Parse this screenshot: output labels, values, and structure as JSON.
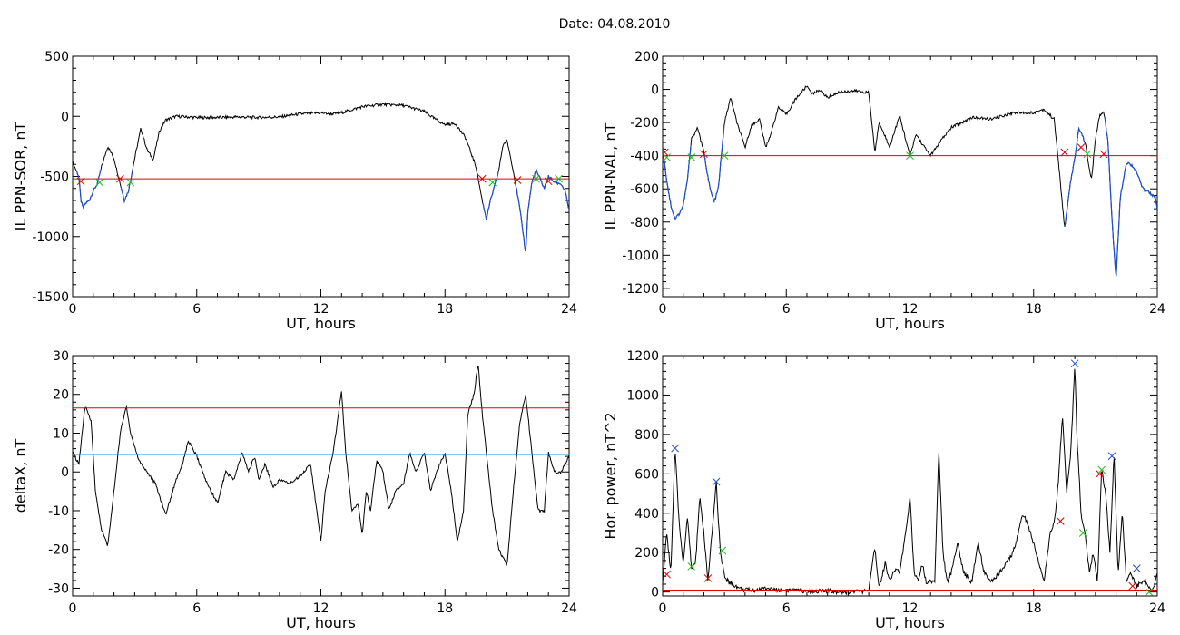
{
  "page_title": "Date:  04.08.2010",
  "colors": {
    "threshold": "#e00000",
    "blue": "#1f4fd0",
    "blueline": "#2a8fd0",
    "green": "#22bb22",
    "trace": "#000000"
  },
  "chart_data": [
    {
      "id": "sor",
      "type": "line",
      "title": "",
      "xlabel": "UT, hours",
      "ylabel": "IL PPN-SOR, nT",
      "xlim": [
        0,
        24
      ],
      "ylim": [
        -1500,
        500
      ],
      "xticks": [
        0,
        6,
        12,
        18,
        24
      ],
      "yticks": [
        500,
        0,
        -500,
        -1000,
        -1500
      ],
      "grid": false,
      "series": [
        {
          "color": "#000000",
          "x": [
            0,
            0.3,
            0.4,
            0.5,
            0.6,
            0.8,
            1.0,
            1.2,
            1.4,
            1.7,
            2.0,
            2.3,
            2.5,
            2.7,
            3.0,
            3.3,
            3.6,
            3.9,
            4.2,
            4.5,
            5.0,
            6.0,
            7.0,
            8.0,
            9.0,
            10.0,
            11.0,
            12.0,
            12.5,
            13.0,
            14.0,
            15.0,
            16.0,
            17.0,
            17.5,
            18.0,
            18.5,
            19.0,
            19.5,
            19.8,
            20.0,
            20.2,
            20.4,
            20.6,
            20.8,
            21.0,
            21.3,
            21.6,
            21.8,
            21.9,
            22.0,
            22.2,
            22.4,
            22.6,
            22.8,
            23.0,
            23.3,
            23.6,
            23.8,
            24.0
          ],
          "y": [
            -380,
            -500,
            -700,
            -760,
            -730,
            -700,
            -620,
            -560,
            -420,
            -250,
            -350,
            -560,
            -700,
            -620,
            -350,
            -100,
            -280,
            -360,
            -120,
            -30,
            0,
            -10,
            -10,
            -5,
            -10,
            -5,
            20,
            30,
            20,
            30,
            80,
            100,
            90,
            40,
            -20,
            -70,
            -60,
            -180,
            -420,
            -700,
            -850,
            -700,
            -580,
            -450,
            -240,
            -200,
            -450,
            -750,
            -1000,
            -1150,
            -800,
            -550,
            -450,
            -520,
            -600,
            -500,
            -550,
            -560,
            -620,
            -780
          ]
        }
      ],
      "blue_segments": [
        [
          0.2,
          1.4
        ],
        [
          2.3,
          2.9
        ],
        [
          19.8,
          20.6
        ],
        [
          21.4,
          24.0
        ]
      ],
      "threshold": -520,
      "red_marks": [
        [
          0.4,
          -540
        ],
        [
          2.3,
          -520
        ],
        [
          19.8,
          -520
        ],
        [
          21.5,
          -530
        ],
        [
          23.0,
          -540
        ]
      ],
      "green_marks": [
        [
          1.3,
          -550
        ],
        [
          2.8,
          -550
        ],
        [
          20.3,
          -550
        ],
        [
          22.4,
          -520
        ],
        [
          23.5,
          -520
        ]
      ]
    },
    {
      "id": "nal",
      "type": "line",
      "title": "",
      "xlabel": "UT, hours",
      "ylabel": "IL PPN-NAL, nT",
      "xlim": [
        0,
        24
      ],
      "ylim": [
        -1250,
        200
      ],
      "xticks": [
        0,
        6,
        12,
        18,
        24
      ],
      "yticks": [
        200,
        0,
        -200,
        -400,
        -600,
        -800,
        -1000,
        -1200
      ],
      "grid": false,
      "series": [
        {
          "color": "#000000",
          "x": [
            0,
            0.2,
            0.4,
            0.6,
            0.8,
            1.0,
            1.2,
            1.4,
            1.7,
            2.0,
            2.3,
            2.5,
            2.7,
            3.0,
            3.3,
            3.6,
            4.0,
            4.3,
            4.7,
            5.0,
            5.3,
            5.6,
            6.0,
            6.5,
            7.0,
            7.3,
            7.6,
            8.0,
            8.5,
            9.0,
            9.5,
            10.0,
            10.3,
            10.5,
            10.7,
            11.0,
            11.5,
            12.0,
            12.3,
            12.6,
            13.0,
            13.5,
            14.0,
            15.0,
            16.0,
            17.0,
            18.0,
            18.5,
            19.0,
            19.3,
            19.5,
            19.8,
            20.0,
            20.2,
            20.5,
            20.8,
            21.0,
            21.2,
            21.4,
            21.6,
            21.8,
            22.0,
            22.2,
            22.5,
            22.8,
            23.0,
            23.3,
            23.6,
            23.9,
            24.0
          ],
          "y": [
            -350,
            -550,
            -700,
            -780,
            -750,
            -700,
            -550,
            -300,
            -230,
            -380,
            -600,
            -680,
            -600,
            -200,
            -50,
            -200,
            -350,
            -220,
            -180,
            -350,
            -250,
            -110,
            -150,
            -50,
            20,
            -30,
            0,
            -50,
            -20,
            -10,
            -10,
            -20,
            -380,
            -200,
            -250,
            -350,
            -160,
            -400,
            -270,
            -330,
            -400,
            -310,
            -230,
            -170,
            -180,
            -140,
            -140,
            -120,
            -180,
            -560,
            -840,
            -550,
            -420,
            -230,
            -320,
            -550,
            -300,
            -160,
            -130,
            -300,
            -780,
            -1150,
            -650,
            -440,
            -460,
            -500,
            -600,
            -620,
            -650,
            -730
          ]
        }
      ],
      "blue_segments": [
        [
          0.0,
          1.4
        ],
        [
          2.0,
          3.0
        ],
        [
          19.5,
          20.5
        ],
        [
          21.4,
          24.0
        ]
      ],
      "threshold": -400,
      "red_marks": [
        [
          0.1,
          -380
        ],
        [
          2.0,
          -390
        ],
        [
          19.5,
          -380
        ],
        [
          20.3,
          -350
        ],
        [
          21.4,
          -390
        ]
      ],
      "green_marks": [
        [
          0.2,
          -410
        ],
        [
          1.4,
          -410
        ],
        [
          3.0,
          -400
        ],
        [
          12.0,
          -400
        ],
        [
          20.6,
          -390
        ]
      ]
    },
    {
      "id": "deltax",
      "type": "line",
      "title": "",
      "xlabel": "UT, hours",
      "ylabel": "deltaX, nT",
      "xlim": [
        0,
        24
      ],
      "ylim": [
        -32,
        30
      ],
      "xticks": [
        0,
        6,
        12,
        18,
        24
      ],
      "yticks": [
        30,
        20,
        10,
        0,
        -10,
        -20,
        -30
      ],
      "grid": false,
      "series": [
        {
          "color": "#000000",
          "x": [
            0,
            0.3,
            0.6,
            0.9,
            1.1,
            1.4,
            1.7,
            2.0,
            2.3,
            2.6,
            2.8,
            3.2,
            3.6,
            4.0,
            4.5,
            5.0,
            5.3,
            5.6,
            6.0,
            6.5,
            7.0,
            7.4,
            7.8,
            8.2,
            8.5,
            8.8,
            9.0,
            9.3,
            9.7,
            10.0,
            10.5,
            11.0,
            11.5,
            12.0,
            12.2,
            12.6,
            13.0,
            13.2,
            13.5,
            13.8,
            14.0,
            14.2,
            14.4,
            14.7,
            15.0,
            15.3,
            15.6,
            16.0,
            16.3,
            16.6,
            17.0,
            17.3,
            17.6,
            18.0,
            18.3,
            18.6,
            18.9,
            19.1,
            19.4,
            19.6,
            19.8,
            20.0,
            20.3,
            20.6,
            21.0,
            21.3,
            21.6,
            21.9,
            22.2,
            22.5,
            22.8,
            23.0,
            23.3,
            23.6,
            24.0
          ],
          "y": [
            5,
            2,
            17,
            13,
            -5,
            -15,
            -19,
            -5,
            10,
            17,
            10,
            3,
            0,
            -3,
            -11,
            -2,
            2,
            8,
            4,
            -3,
            -8,
            0,
            -2,
            5,
            0,
            4,
            -2,
            2,
            -4,
            -2,
            -3,
            -1,
            2,
            -18,
            -5,
            5,
            21,
            5,
            -10,
            -8,
            -16,
            -5,
            -10,
            3,
            0,
            -10,
            -5,
            -3,
            5,
            0,
            5,
            -5,
            0,
            5,
            -5,
            -18,
            -10,
            15,
            20,
            28,
            15,
            5,
            -10,
            -20,
            -24,
            -5,
            12,
            20,
            5,
            -10,
            -10,
            5,
            0,
            0,
            4
          ]
        }
      ],
      "threshold_red": 16.5,
      "threshold_blue": 4.5
    },
    {
      "id": "power",
      "type": "line",
      "title": "",
      "xlabel": "UT, hours",
      "ylabel": "Hor. power, nT^2",
      "xlim": [
        0,
        24
      ],
      "ylim": [
        -20,
        1200
      ],
      "xticks": [
        0,
        6,
        12,
        18,
        24
      ],
      "yticks": [
        1200,
        1000,
        800,
        600,
        400,
        200,
        0
      ],
      "grid": false,
      "series": [
        {
          "color": "#000000",
          "x": [
            0,
            0.2,
            0.4,
            0.6,
            0.8,
            1.0,
            1.2,
            1.4,
            1.6,
            1.8,
            2.0,
            2.2,
            2.4,
            2.6,
            2.8,
            3.0,
            3.2,
            3.4,
            3.7,
            4.0,
            4.5,
            5.0,
            5.5,
            6.0,
            7.0,
            8.0,
            9.0,
            10.0,
            10.3,
            10.5,
            10.8,
            11.0,
            11.3,
            11.5,
            11.8,
            12.0,
            12.2,
            12.4,
            12.6,
            12.8,
            13.0,
            13.2,
            13.4,
            13.6,
            13.8,
            14.0,
            14.3,
            14.6,
            15.0,
            15.3,
            15.6,
            16.0,
            16.5,
            17.0,
            17.5,
            18.0,
            18.5,
            18.8,
            19.0,
            19.2,
            19.4,
            19.6,
            19.8,
            20.0,
            20.1,
            20.3,
            20.5,
            20.7,
            20.9,
            21.1,
            21.3,
            21.5,
            21.7,
            21.9,
            22.1,
            22.3,
            22.5,
            22.7,
            23.0,
            23.3,
            23.6,
            23.8,
            24.0
          ],
          "y": [
            50,
            300,
            100,
            730,
            350,
            150,
            380,
            120,
            150,
            480,
            300,
            50,
            300,
            560,
            200,
            80,
            50,
            40,
            20,
            10,
            10,
            20,
            10,
            10,
            5,
            5,
            0,
            5,
            230,
            20,
            150,
            60,
            120,
            100,
            300,
            480,
            100,
            60,
            150,
            40,
            60,
            50,
            720,
            200,
            50,
            100,
            250,
            100,
            50,
            250,
            100,
            50,
            120,
            200,
            400,
            250,
            50,
            300,
            350,
            550,
            900,
            500,
            700,
            1160,
            800,
            400,
            300,
            100,
            200,
            50,
            620,
            500,
            200,
            700,
            100,
            400,
            50,
            100,
            30,
            60,
            20,
            10,
            90
          ]
        }
      ],
      "threshold": 10,
      "red_marks": [
        [
          0.2,
          90
        ],
        [
          2.2,
          70
        ],
        [
          19.3,
          360
        ],
        [
          21.2,
          600
        ],
        [
          22.8,
          30
        ]
      ],
      "blue_marks": [
        [
          0.6,
          730
        ],
        [
          2.6,
          560
        ],
        [
          20.0,
          1160
        ],
        [
          21.8,
          690
        ],
        [
          23.0,
          120
        ]
      ],
      "green_marks": [
        [
          1.4,
          130
        ],
        [
          2.9,
          210
        ],
        [
          20.4,
          300
        ],
        [
          21.3,
          620
        ],
        [
          23.6,
          0
        ]
      ]
    }
  ]
}
